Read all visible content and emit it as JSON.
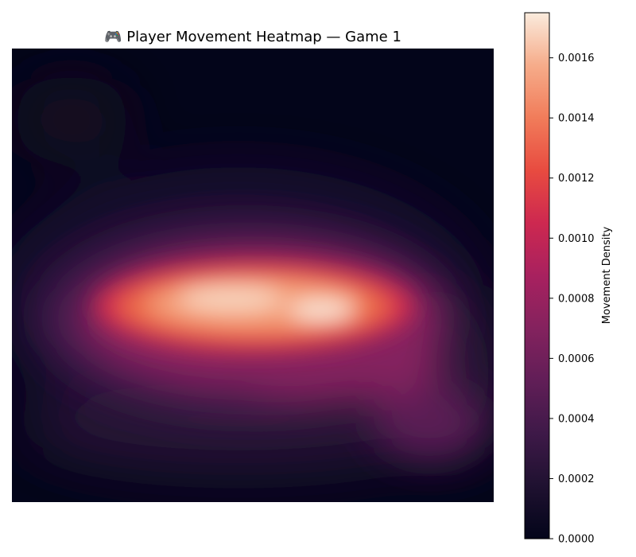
{
  "chart_data": {
    "type": "heatmap",
    "title": "🎮 Player Movement Heatmap — Game 1",
    "xlabel": "",
    "ylabel": "",
    "axes_visible": false,
    "grid": false,
    "colormap": "rocket",
    "colorbar": {
      "label": "Movement Density",
      "range": [
        0,
        0.00175
      ],
      "ticks": [
        0,
        0.0002,
        0.0004,
        0.0006,
        0.0008,
        0.001,
        0.0012,
        0.0014,
        0.0016
      ],
      "tick_labels": [
        "0.0000",
        "0.0002",
        "0.0004",
        "0.0006",
        "0.0008",
        "0.0010",
        "0.0012",
        "0.0014",
        "0.0016"
      ]
    },
    "density_peaks": [
      {
        "x": 0.45,
        "y": 0.43,
        "value": 0.00168
      },
      {
        "x": 0.65,
        "y": 0.41,
        "value": 0.00175
      },
      {
        "x": 0.88,
        "y": 0.84,
        "value": 0.00045
      },
      {
        "x": 0.12,
        "y": 0.38,
        "value": 0.0003
      }
    ]
  }
}
